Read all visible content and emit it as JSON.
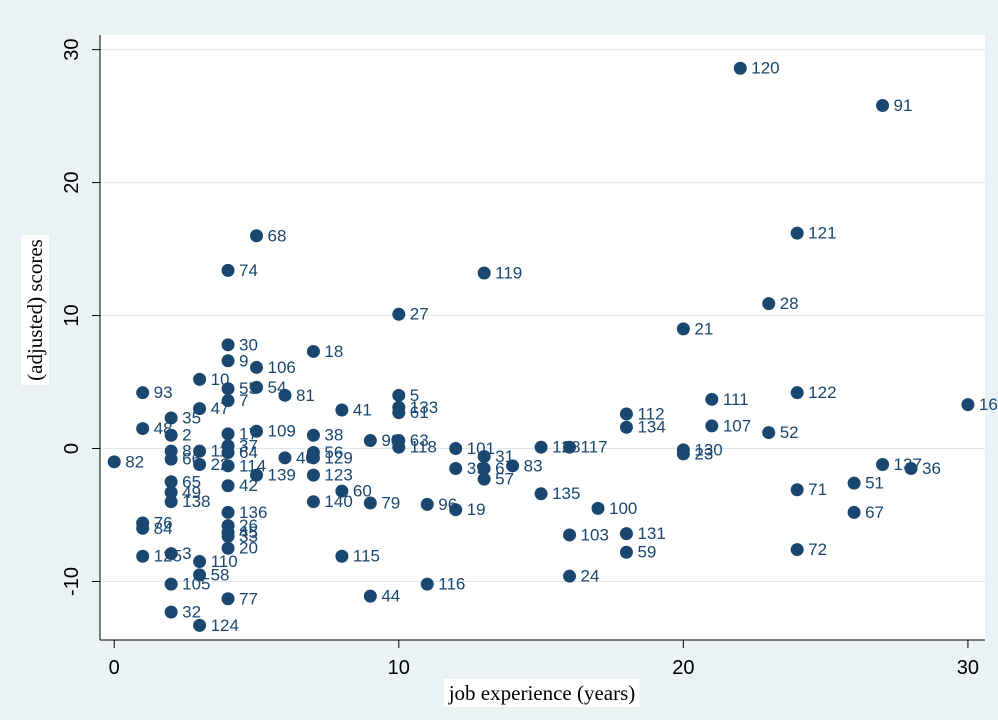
{
  "chart_data": {
    "type": "scatter",
    "color": "#1a476f",
    "grid": true,
    "x_label": "job experience (years)",
    "y_label": "(adjusted) scores",
    "xlim": [
      -0.5,
      30.6
    ],
    "ylim": [
      -14.4,
      31.1
    ],
    "xticks": [
      0,
      10,
      20,
      30
    ],
    "yticks": [
      -10,
      0,
      10,
      20,
      30
    ],
    "x": [
      22,
      27,
      24,
      5,
      4,
      13,
      23,
      10,
      20,
      4,
      7,
      4,
      5,
      3,
      1,
      24,
      10,
      4,
      5,
      6,
      4,
      21,
      30,
      8,
      10,
      10,
      3,
      18,
      2,
      18,
      21,
      1,
      23,
      5,
      4,
      7,
      2,
      9,
      10,
      10,
      12,
      15,
      16,
      20,
      20,
      13,
      7,
      7,
      6,
      0,
      27,
      28,
      14,
      12,
      13,
      13,
      5,
      7,
      26,
      24,
      8,
      15,
      4,
      7,
      9,
      11,
      12,
      17,
      2,
      4,
      26,
      1,
      1,
      4,
      4,
      4,
      16,
      18,
      4,
      24,
      18,
      1,
      2,
      8,
      3,
      3,
      16,
      2,
      11,
      9,
      4,
      2,
      3,
      2,
      3,
      4,
      4,
      4,
      2,
      3,
      2,
      2
    ],
    "y": [
      28.6,
      25.8,
      16.2,
      16,
      13.4,
      13.2,
      10.9,
      10.1,
      9,
      7.8,
      7.3,
      6.6,
      6.1,
      5.2,
      4.2,
      4.2,
      4,
      4.5,
      4.6,
      4,
      3.6,
      3.7,
      3.3,
      2.9,
      3.1,
      2.7,
      3,
      2.6,
      2.3,
      1.6,
      1.7,
      1.5,
      1.2,
      1.3,
      1.1,
      1,
      1,
      0.6,
      0.6,
      0.1,
      0,
      0.1,
      0.1,
      -0.1,
      -0.4,
      -0.6,
      -0.3,
      -0.7,
      -0.7,
      -1,
      -1.2,
      -1.5,
      -1.3,
      -1.5,
      -1.5,
      -2.3,
      -2,
      -2,
      -2.6,
      -3.1,
      -3.2,
      -3.4,
      -2.8,
      -4,
      -4.1,
      -4.2,
      -4.6,
      -4.5,
      -4,
      -4.8,
      -4.8,
      -5.6,
      -6,
      -5.8,
      -6.3,
      -6.6,
      -6.5,
      -6.4,
      -7.5,
      -7.6,
      -7.8,
      -8.1,
      -7.9,
      -8.1,
      -8.5,
      -9.5,
      -9.6,
      -10.2,
      -10.2,
      -11.1,
      -11.3,
      -12.3,
      -13.3,
      -0.2,
      -0.2,
      -0.3,
      0.2,
      -1.3,
      -0.8,
      -1.2,
      -2.5,
      -3.3
    ],
    "labels": [
      "120",
      "91",
      "121",
      "68",
      "74",
      "119",
      "28",
      "27",
      "21",
      "30",
      "18",
      "9",
      "106",
      "10",
      "93",
      "122",
      "5",
      "55",
      "54",
      "81",
      "7",
      "111",
      "16",
      "41",
      "133",
      "61",
      "47",
      "112",
      "35",
      "134",
      "107",
      "48",
      "52",
      "109",
      "17",
      "38",
      "2",
      "90",
      "63",
      "118",
      "101",
      "128",
      "117",
      "130",
      "23",
      "31",
      "56",
      "129",
      "40",
      "82",
      "137",
      "36",
      "83",
      "39",
      "6",
      "57",
      "139",
      "123",
      "51",
      "71",
      "60",
      "135",
      "42",
      "140",
      "79",
      "96",
      "19",
      "100",
      "138",
      "136",
      "67",
      "76",
      "84",
      "26",
      "45",
      "33",
      "103",
      "131",
      "20",
      "72",
      "59",
      "125",
      "3",
      "115",
      "110",
      "58",
      "24",
      "105",
      "116",
      "44",
      "77",
      "32",
      "124",
      "8",
      "11",
      "64",
      "37",
      "114",
      "66",
      "22",
      "65",
      "49"
    ]
  }
}
